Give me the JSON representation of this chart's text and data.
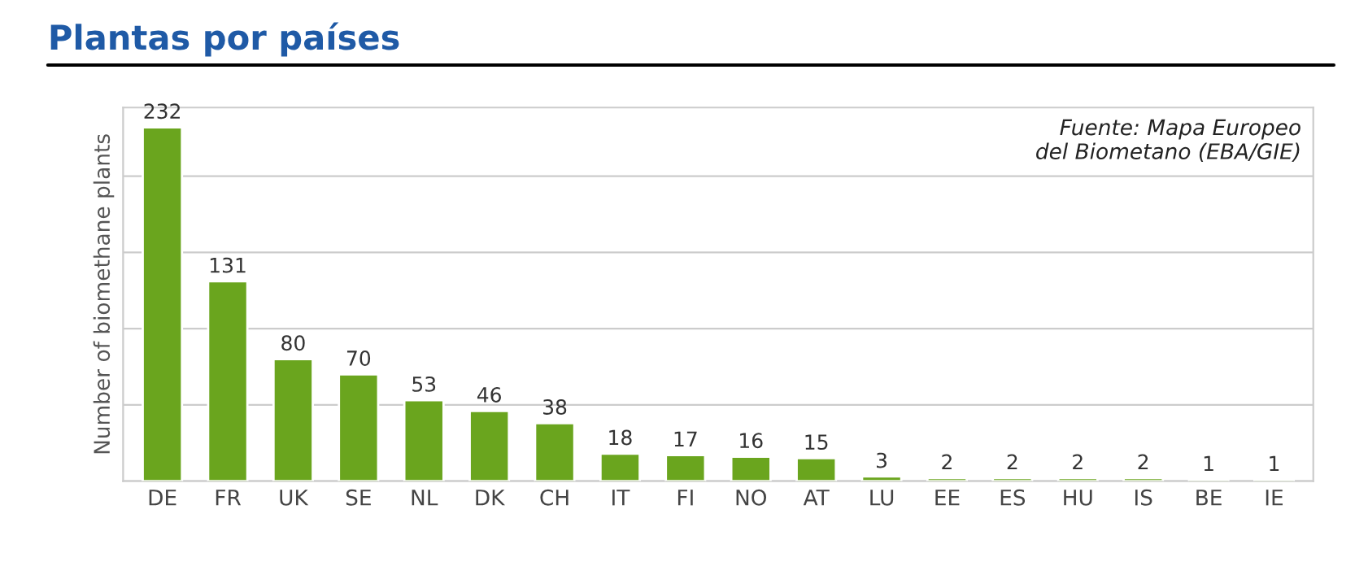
{
  "chart_data": {
    "type": "bar",
    "title": "Plantas por países",
    "ylabel": "Number of biomethane plants",
    "annotations": [
      "Fuente: Mapa Europeo\ndel Biometano (EBA/GIE)"
    ],
    "categories": [
      "DE",
      "FR",
      "UK",
      "SE",
      "NL",
      "DK",
      "CH",
      "IT",
      "FI",
      "NO",
      "AT",
      "LU",
      "EE",
      "ES",
      "HU",
      "IS",
      "BE",
      "IE"
    ],
    "values": [
      232,
      131,
      80,
      70,
      53,
      46,
      38,
      18,
      17,
      16,
      15,
      3,
      2,
      2,
      2,
      2,
      1,
      1
    ],
    "color": "#6aa51e",
    "ylim": [
      0,
      245
    ],
    "yticks": [
      {
        "value": 0,
        "label": null
      },
      {
        "value": 50,
        "label": null
      },
      {
        "value": 100,
        "label": null
      },
      {
        "value": 150,
        "label": null
      },
      {
        "value": 200,
        "label": null
      }
    ],
    "tick_labels": "x",
    "grid": "y",
    "data_labels": true
  }
}
